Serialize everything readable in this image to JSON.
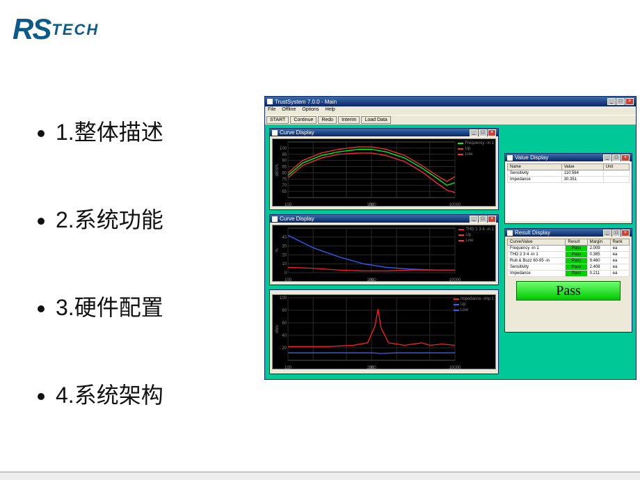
{
  "logo": {
    "rs": "RS",
    "tech": "TECH"
  },
  "agenda": [
    "1.整体描述",
    "2.系统功能",
    "3.硬件配置",
    "4.系统架构"
  ],
  "app": {
    "title": "TrustSystem 7.0.0 - Main",
    "menu": [
      "File",
      "Offline",
      "Options",
      "Help"
    ],
    "toolbar": [
      "START",
      "Continue",
      "Redo",
      "Interim",
      "Load Data"
    ],
    "colors": {
      "desktop": "#00c896",
      "chart_bg": "#000000",
      "grid": "#333333",
      "freq_curve": "#00ff00",
      "freq_limit": "#ff3030",
      "thd_curve1": "#3060ff",
      "thd_curve2": "#ff2020",
      "imp_mag": "#ff2020",
      "imp_phase": "#3060ff"
    },
    "chart1": {
      "title": "Curve Display",
      "type": "line",
      "xscale": "log",
      "xlim": [
        100,
        10000
      ],
      "ylim": [
        60,
        105
      ],
      "xticks": [
        "100",
        "1000",
        "10000"
      ],
      "xlabel": "Hz",
      "ylabel": "dBSPL",
      "yticks": [
        "100",
        "95",
        "90",
        "85",
        "80",
        "75",
        "70",
        "65"
      ],
      "legend": [
        {
          "label": "Frequency -in 1",
          "color": "#00ff00"
        },
        {
          "label": "Up",
          "color": "#ff3030"
        },
        {
          "label": "Low",
          "color": "#ff3030"
        }
      ],
      "curve": [
        [
          100,
          78
        ],
        [
          150,
          88
        ],
        [
          250,
          94
        ],
        [
          400,
          97
        ],
        [
          700,
          99
        ],
        [
          1000,
          99
        ],
        [
          1500,
          97
        ],
        [
          2500,
          92
        ],
        [
          4000,
          84
        ],
        [
          6000,
          76
        ],
        [
          8000,
          70
        ],
        [
          10000,
          72
        ]
      ],
      "upper": [
        [
          100,
          80
        ],
        [
          150,
          90
        ],
        [
          250,
          96
        ],
        [
          400,
          99
        ],
        [
          700,
          101
        ],
        [
          1000,
          101
        ],
        [
          1500,
          99
        ],
        [
          2500,
          94
        ],
        [
          4000,
          86
        ],
        [
          6000,
          78
        ],
        [
          8000,
          73
        ],
        [
          10000,
          77
        ]
      ],
      "lower": [
        [
          100,
          76
        ],
        [
          150,
          86
        ],
        [
          250,
          92
        ],
        [
          400,
          95
        ],
        [
          700,
          96
        ],
        [
          1000,
          96
        ],
        [
          1500,
          94
        ],
        [
          2500,
          89
        ],
        [
          4000,
          81
        ],
        [
          6000,
          72
        ],
        [
          8000,
          66
        ],
        [
          10000,
          64
        ]
      ]
    },
    "chart2": {
      "title": "Curve Display",
      "type": "line",
      "xscale": "log",
      "xlim": [
        100,
        10000
      ],
      "ylim": [
        0,
        50
      ],
      "xticks": [
        "100",
        "1000",
        "10000"
      ],
      "xlabel": "Hz",
      "ylabel": "%",
      "yticks": [
        "40",
        "30",
        "20",
        "10",
        "0"
      ],
      "legend": [
        {
          "label": "THD 2 3 4 -in 1",
          "color": "#ff2020"
        },
        {
          "label": "Up",
          "color": "#ff3030"
        },
        {
          "label": "Low",
          "color": "#ff3030"
        }
      ],
      "c1": [
        [
          100,
          42
        ],
        [
          200,
          28
        ],
        [
          400,
          18
        ],
        [
          800,
          10
        ],
        [
          1500,
          6
        ],
        [
          3000,
          4
        ],
        [
          6000,
          3
        ],
        [
          10000,
          3
        ]
      ],
      "c2": [
        [
          100,
          6
        ],
        [
          200,
          5
        ],
        [
          400,
          3
        ],
        [
          800,
          2
        ],
        [
          1500,
          2
        ],
        [
          3000,
          3
        ],
        [
          6000,
          3
        ],
        [
          10000,
          3
        ]
      ]
    },
    "chart3": {
      "title": "",
      "type": "line",
      "xscale": "log",
      "xlim": [
        100,
        10000
      ],
      "ylim": [
        0,
        100
      ],
      "xticks": [
        "100",
        "1000",
        "10000"
      ],
      "xlabel": "Hz",
      "ylabel": "ohm",
      "yticks": [
        "100",
        "80",
        "60",
        "40",
        "20"
      ],
      "legend": [
        {
          "label": "Impedance -imp 1",
          "color": "#ff2020"
        },
        {
          "label": "Up",
          "color": "#3060ff"
        },
        {
          "label": "Low",
          "color": "#3060ff"
        }
      ],
      "mag": [
        [
          100,
          22
        ],
        [
          300,
          22
        ],
        [
          600,
          24
        ],
        [
          900,
          28
        ],
        [
          1100,
          55
        ],
        [
          1200,
          82
        ],
        [
          1300,
          52
        ],
        [
          1600,
          28
        ],
        [
          2500,
          24
        ],
        [
          4000,
          28
        ],
        [
          5000,
          24
        ],
        [
          7000,
          26
        ],
        [
          10000,
          24
        ]
      ],
      "phase": [
        [
          100,
          12
        ],
        [
          300,
          12
        ],
        [
          700,
          12
        ],
        [
          1000,
          12
        ],
        [
          1300,
          11
        ],
        [
          2000,
          12
        ],
        [
          5000,
          12
        ],
        [
          10000,
          12
        ]
      ]
    },
    "value_panel": {
      "title": "Value Display",
      "columns": [
        "Name",
        "Value",
        "Unit"
      ],
      "rows": [
        [
          "Sensitivity",
          "110.584",
          ""
        ],
        [
          "Impedance",
          "30.351",
          ""
        ]
      ]
    },
    "result_panel": {
      "title": "Result Display",
      "columns": [
        "Curve/Value",
        "Result",
        "Margin",
        "Rank"
      ],
      "rows": [
        [
          "Frequency -in 1",
          "Pass",
          "2.009",
          "ea"
        ],
        [
          "THD 2 3 4 -in 1",
          "Pass",
          "0.385",
          "ea"
        ],
        [
          "Rub & Buzz 60-95 -in",
          "Pass",
          "9.460",
          "ea"
        ],
        [
          "Sensitivity",
          "Pass",
          "2.408",
          "ea"
        ],
        [
          "Impedance",
          "Pass",
          "0.211",
          "ea"
        ]
      ],
      "big_result": "Pass"
    }
  }
}
